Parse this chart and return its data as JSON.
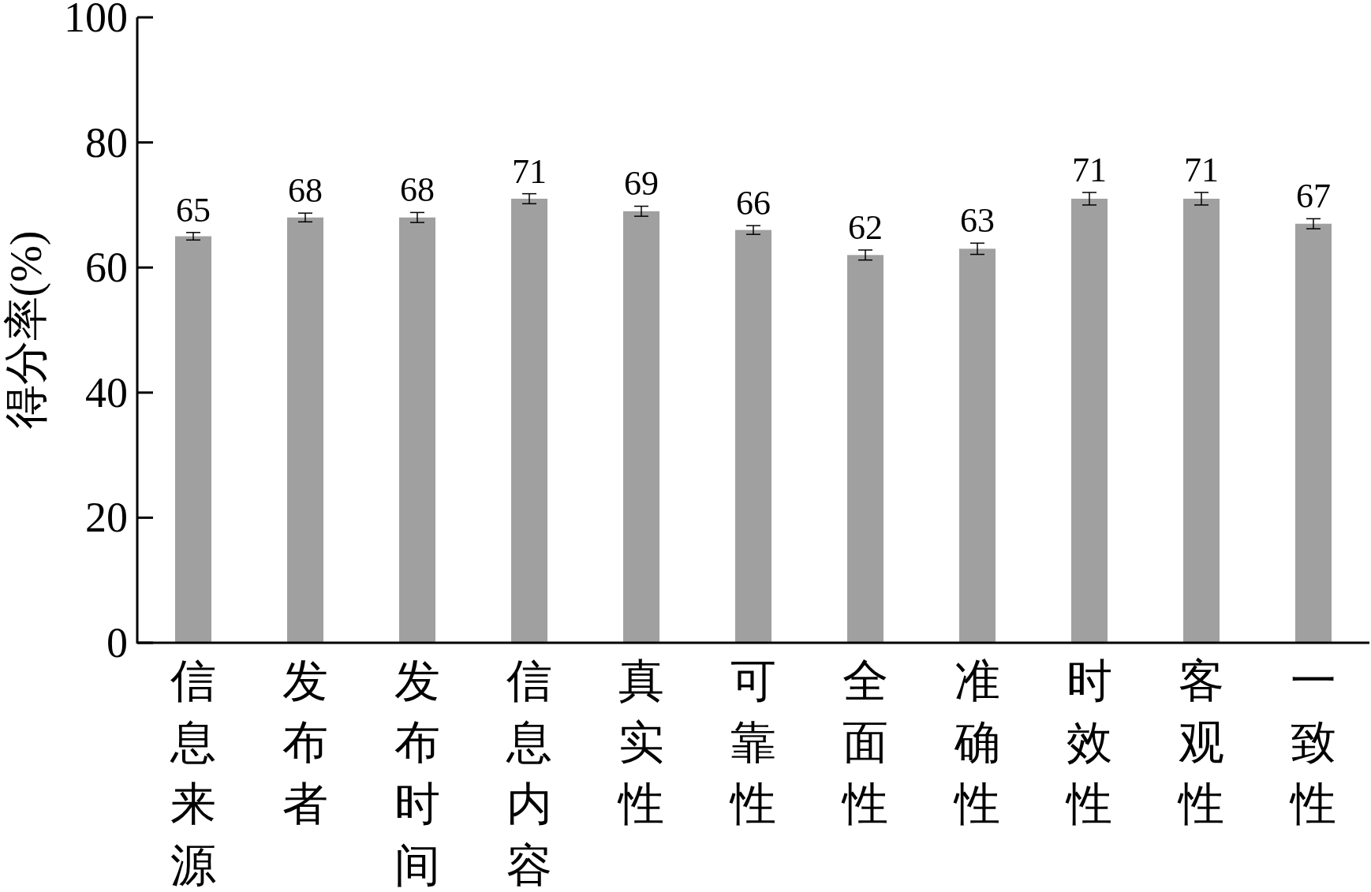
{
  "chart_data": {
    "type": "bar",
    "ylabel": "得分率(%)",
    "categories": [
      "信息来源",
      "发布者",
      "发布时间",
      "信息内容",
      "真实性",
      "可靠性",
      "全面性",
      "准确性",
      "时效性",
      "客观性",
      "一致性"
    ],
    "values": [
      65,
      68,
      68,
      71,
      69,
      66,
      62,
      63,
      71,
      71,
      67
    ],
    "errors": [
      0.6,
      0.7,
      0.8,
      0.8,
      0.8,
      0.7,
      0.8,
      0.9,
      1,
      1,
      0.8
    ],
    "color": "#a0a0a0",
    "ylim": [
      0,
      100
    ],
    "yticks": [
      0,
      20,
      40,
      60,
      80,
      100
    ],
    "data_labels": true
  }
}
